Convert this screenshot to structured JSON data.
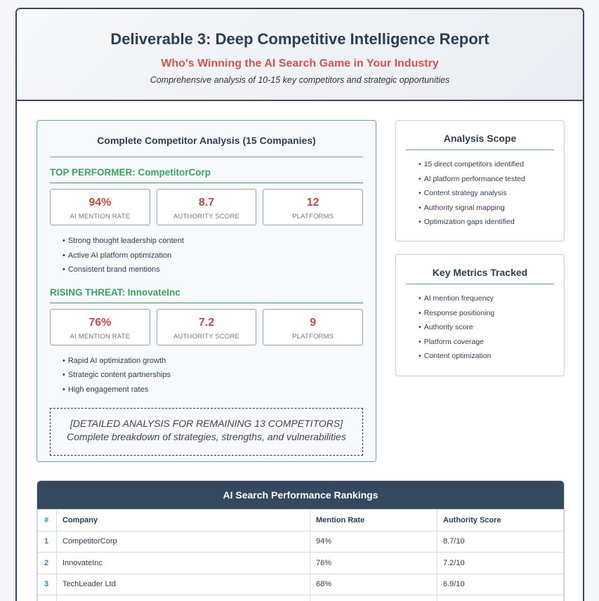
{
  "header": {
    "title": "Deliverable 3: Deep Competitive Intelligence Report",
    "subtitle": "Who's Winning the AI Search Game in Your Industry",
    "tagline": "Comprehensive analysis of 10-15 key competitors and strategic opportunities"
  },
  "analysis": {
    "title": "Complete Competitor Analysis (15 Companies)",
    "top": {
      "heading": "TOP PERFORMER: CompetitorCorp",
      "metrics": [
        {
          "value": "94%",
          "label": "AI MENTION RATE"
        },
        {
          "value": "8.7",
          "label": "AUTHORITY SCORE"
        },
        {
          "value": "12",
          "label": "PLATFORMS"
        }
      ],
      "bullets": [
        "Strong thought leadership content",
        "Active AI platform optimization",
        "Consistent brand mentions"
      ]
    },
    "rising": {
      "heading": "RISING THREAT: InnovateInc",
      "metrics": [
        {
          "value": "76%",
          "label": "AI MENTION RATE"
        },
        {
          "value": "7.2",
          "label": "AUTHORITY SCORE"
        },
        {
          "value": "9",
          "label": "PLATFORMS"
        }
      ],
      "bullets": [
        "Rapid AI optimization growth",
        "Strategic content partnerships",
        "High engagement rates"
      ]
    },
    "placeholder": {
      "line1": "[DETAILED ANALYSIS FOR REMAINING 13 COMPETITORS]",
      "line2": "Complete breakdown of strategies, strengths, and vulnerabilities"
    }
  },
  "scope": {
    "title": "Analysis Scope",
    "items": [
      "15 direct competitors identified",
      "AI platform performance tested",
      "Content strategy analysis",
      "Authority signal mapping",
      "Optimization gaps identified"
    ]
  },
  "metrics_tracked": {
    "title": "Key Metrics Tracked",
    "items": [
      "AI mention frequency",
      "Response positioning",
      "Authority score",
      "Platform coverage",
      "Content optimization"
    ]
  },
  "rankings": {
    "title": "AI Search Performance Rankings",
    "columns": [
      "#",
      "Company",
      "Mention Rate",
      "Authority Score"
    ],
    "rows": [
      [
        "1",
        "CompetitorCorp",
        "94%",
        "8.7/10"
      ],
      [
        "2",
        "InnovateInc",
        "76%",
        "7.2/10"
      ],
      [
        "3",
        "TechLeader Ltd",
        "68%",
        "6.9/10"
      ]
    ]
  },
  "colors": {
    "navy": "#34495e",
    "accent_red": "#d0453f",
    "accent_green": "#3aa35b",
    "accent_blue": "#5da3c9"
  }
}
